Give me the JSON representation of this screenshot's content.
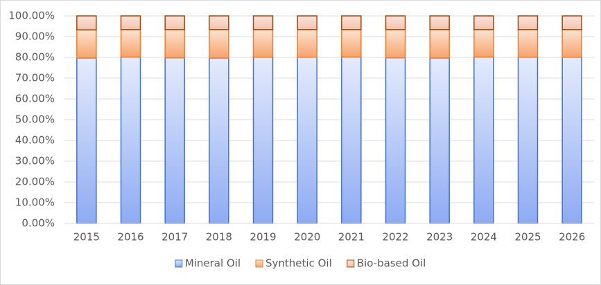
{
  "chart_data": {
    "type": "stacked_bar",
    "categories": [
      "2015",
      "2016",
      "2017",
      "2018",
      "2019",
      "2020",
      "2021",
      "2022",
      "2023",
      "2024",
      "2025",
      "2026"
    ],
    "series": [
      {
        "name": "Mineral Oil",
        "color": "#4472c4",
        "values": [
          79.7,
          80.2,
          79.8,
          79.7,
          80.1,
          80.1,
          80.2,
          79.8,
          79.7,
          80.2,
          80.1,
          80.1
        ]
      },
      {
        "name": "Synthetic Oil",
        "color": "#ed7d31",
        "values": [
          13.6,
          13.2,
          13.6,
          13.7,
          13.3,
          13.3,
          13.2,
          13.6,
          13.7,
          13.2,
          13.3,
          13.3
        ]
      },
      {
        "name": "Bio-based Oil",
        "color": "#9e480e",
        "values": [
          6.7,
          6.6,
          6.6,
          6.6,
          6.6,
          6.6,
          6.6,
          6.6,
          6.6,
          6.6,
          6.6,
          6.6
        ]
      }
    ],
    "ylim": [
      0,
      100
    ],
    "yticks": [
      {
        "value": 0,
        "label": "0.00%"
      },
      {
        "value": 10,
        "label": "10.00%"
      },
      {
        "value": 20,
        "label": "20.00%"
      },
      {
        "value": 30,
        "label": "30.00%"
      },
      {
        "value": 40,
        "label": "40.00%"
      },
      {
        "value": 50,
        "label": "50.00%"
      },
      {
        "value": 60,
        "label": "60.00%"
      },
      {
        "value": 70,
        "label": "70.00%"
      },
      {
        "value": 80,
        "label": "80.00%"
      },
      {
        "value": 90,
        "label": "90.00%"
      },
      {
        "value": 100,
        "label": "100.00%"
      }
    ],
    "grid": true,
    "legend": "bottom"
  }
}
